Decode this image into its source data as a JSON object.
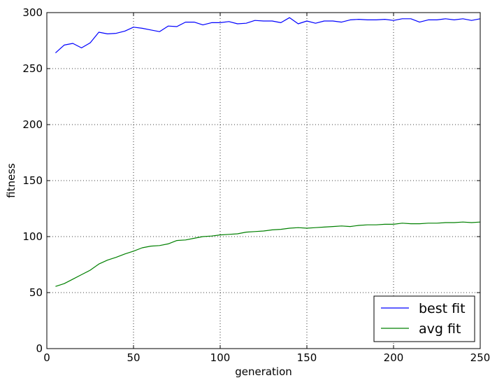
{
  "chart_data": {
    "type": "line",
    "title": "",
    "xlabel": "generation",
    "ylabel": "fitness",
    "xlim": [
      0,
      250
    ],
    "ylim": [
      0,
      300
    ],
    "xticks": [
      0,
      50,
      100,
      150,
      200,
      250
    ],
    "yticks": [
      0,
      50,
      100,
      150,
      200,
      250,
      300
    ],
    "grid": true,
    "legend_position": "bottom-right",
    "x": [
      5,
      10,
      15,
      20,
      25,
      30,
      35,
      40,
      45,
      50,
      55,
      60,
      65,
      70,
      75,
      80,
      85,
      90,
      95,
      100,
      105,
      110,
      115,
      120,
      125,
      130,
      135,
      140,
      145,
      150,
      155,
      160,
      165,
      170,
      175,
      180,
      185,
      190,
      195,
      200,
      205,
      210,
      215,
      220,
      225,
      230,
      235,
      240,
      245,
      250
    ],
    "series": [
      {
        "name": "best fit",
        "color": "#0000ff",
        "values": [
          264,
          271,
          272.5,
          268.5,
          273,
          282.5,
          281,
          281.5,
          283.5,
          287,
          286,
          284.5,
          283,
          288,
          287.5,
          291.5,
          291.5,
          289,
          291,
          291,
          292,
          290,
          290.5,
          293,
          292.5,
          292.5,
          291,
          295.5,
          290,
          292.5,
          290.5,
          292.5,
          292.5,
          291.5,
          293.5,
          294,
          293.5,
          293.5,
          294,
          293,
          294.5,
          294.5,
          291.5,
          293.5,
          293.5,
          294.5,
          293.5,
          294.5,
          293,
          294.5
        ]
      },
      {
        "name": "avg fit",
        "color": "#008000",
        "values": [
          55.5,
          58,
          62,
          66,
          70,
          75.5,
          79,
          81.5,
          84.5,
          87,
          90,
          91.5,
          92,
          93.5,
          96.5,
          97,
          98.5,
          100,
          100.5,
          101.5,
          102,
          102.5,
          104,
          104.5,
          105,
          106,
          106.5,
          107.5,
          108,
          107.5,
          108,
          108.5,
          109,
          109.5,
          109,
          110,
          110.5,
          110.5,
          111,
          111,
          112,
          111.5,
          111.5,
          112,
          112,
          112.5,
          112.5,
          113,
          112.5,
          113
        ]
      }
    ]
  }
}
